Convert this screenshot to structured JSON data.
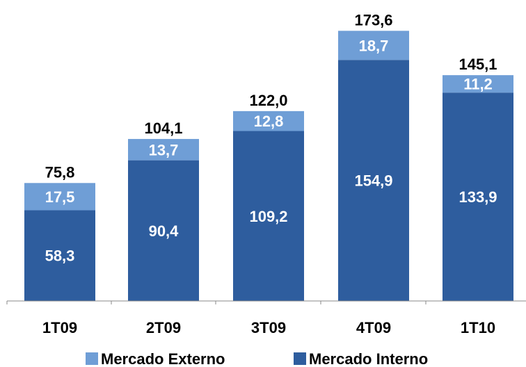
{
  "chart_data": {
    "type": "bar",
    "stacked": true,
    "categories": [
      "1T09",
      "2T09",
      "3T09",
      "4T09",
      "1T10"
    ],
    "series": [
      {
        "name": "Mercado Interno",
        "color": "#2E5D9E",
        "values": [
          58.3,
          90.4,
          109.2,
          154.9,
          133.9
        ],
        "labels": [
          "58,3",
          "90,4",
          "109,2",
          "154,9",
          "133,9"
        ]
      },
      {
        "name": "Mercado Externo",
        "color": "#6F9ED6",
        "values": [
          17.5,
          13.7,
          12.8,
          18.7,
          11.2
        ],
        "labels": [
          "17,5",
          "13,7",
          "12,8",
          "18,7",
          "11,2"
        ]
      }
    ],
    "totals": [
      75.8,
      104.1,
      122.0,
      173.6,
      145.1
    ],
    "total_labels": [
      "75,8",
      "104,1",
      "122,0",
      "173,6",
      "145,1"
    ],
    "ylim": [
      0,
      180
    ],
    "grid": false,
    "legend": "bottom"
  }
}
